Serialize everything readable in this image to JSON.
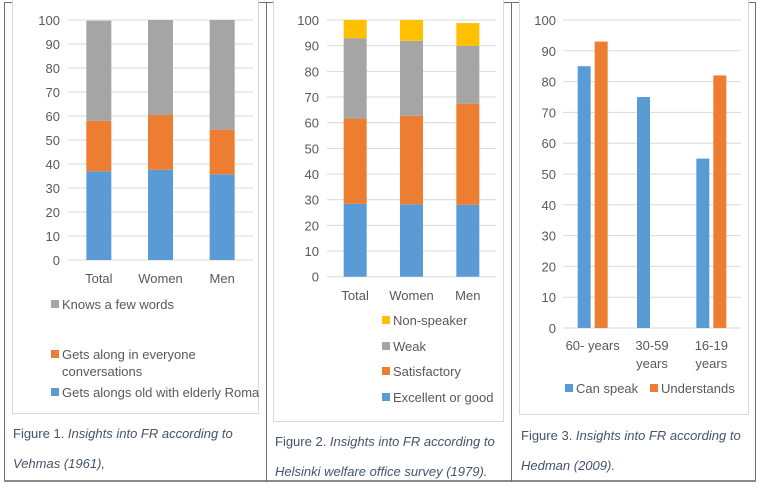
{
  "colors": {
    "blue": "#5b9bd5",
    "orange": "#ed7d31",
    "gray": "#a5a5a5",
    "yellow": "#ffc000",
    "grid": "#d9d9d9",
    "text": "#595959",
    "caption": "#44546a"
  },
  "chart_data": [
    {
      "type": "bar",
      "stacked": true,
      "categories": [
        "Total",
        "Women",
        "Men"
      ],
      "series": [
        {
          "name": "Gets alongs old with elderly Roma",
          "color": "#5b9bd5",
          "values": [
            37,
            37.6,
            35.7
          ]
        },
        {
          "name": "Gets along in everyone conversations",
          "color": "#ed7d31",
          "values": [
            21,
            22.8,
            18.6
          ]
        },
        {
          "name": "Knows a few words",
          "color": "#a5a5a5",
          "values": [
            41.7,
            39.6,
            45.7
          ]
        }
      ],
      "yticks": [
        "0",
        "10",
        "20",
        "30",
        "40",
        "50",
        "60",
        "70",
        "80",
        "90",
        "100"
      ],
      "ylim": [
        0,
        100
      ],
      "grid": true,
      "legend_position": "bottom",
      "legend": [
        {
          "label": "Knows a few words",
          "lines": [
            "Knows a few words"
          ],
          "color": "#a5a5a5"
        },
        {
          "label": "Gets along in everyone conversations",
          "lines": [
            "Gets along in everyone",
            "conversations"
          ],
          "color": "#ed7d31"
        },
        {
          "label": "Gets alongs old with elderly Roma",
          "lines": [
            "Gets alongs old with elderly Roma"
          ],
          "color": "#5b9bd5"
        }
      ],
      "caption_prefix": "Figure 1. ",
      "caption_lines": [
        "Insights into FR according to",
        "Vehmas (1961),"
      ]
    },
    {
      "type": "bar",
      "stacked": true,
      "categories": [
        "Total",
        "Women",
        "Men"
      ],
      "series": [
        {
          "name": "Excellent or good",
          "color": "#5b9bd5",
          "values": [
            28.4,
            28.2,
            28.0
          ]
        },
        {
          "name": "Satisfactory",
          "color": "#ed7d31",
          "values": [
            33.2,
            34.5,
            39.4
          ]
        },
        {
          "name": "Weak",
          "color": "#a5a5a5",
          "values": [
            31.3,
            29.2,
            22.5
          ]
        },
        {
          "name": "Non-speaker",
          "color": "#ffc000",
          "values": [
            7.1,
            8.1,
            8.9
          ]
        }
      ],
      "yticks": [
        "0",
        "10",
        "20",
        "30",
        "40",
        "50",
        "60",
        "70",
        "80",
        "90",
        "100"
      ],
      "ylim": [
        0,
        100
      ],
      "grid": true,
      "legend_position": "bottom",
      "legend": [
        {
          "label": "Non-speaker",
          "lines": [
            "Non-speaker"
          ],
          "color": "#ffc000"
        },
        {
          "label": "Weak",
          "lines": [
            "Weak"
          ],
          "color": "#a5a5a5"
        },
        {
          "label": "Satisfactory",
          "lines": [
            "Satisfactory"
          ],
          "color": "#ed7d31"
        },
        {
          "label": "Excellent or good",
          "lines": [
            "Excellent or good"
          ],
          "color": "#5b9bd5"
        }
      ],
      "caption_prefix": "Figure 2. ",
      "caption_lines": [
        "Insights into FR according to",
        "Helsinki welfare office survey (1979)."
      ]
    },
    {
      "type": "bar",
      "stacked": false,
      "categories": [
        "60- years",
        "30-59 years",
        "16-19 years"
      ],
      "category_lines": [
        [
          "60- years"
        ],
        [
          "30-59",
          "years"
        ],
        [
          "16-19",
          "years"
        ]
      ],
      "series": [
        {
          "name": "Can speak",
          "color": "#5b9bd5",
          "values": [
            85,
            75,
            55
          ]
        },
        {
          "name": "Understands",
          "color": "#ed7d31",
          "values": [
            93,
            null,
            82
          ]
        }
      ],
      "yticks": [
        "0",
        "10",
        "20",
        "30",
        "40",
        "50",
        "60",
        "70",
        "80",
        "90",
        "100"
      ],
      "ylim": [
        0,
        100
      ],
      "grid": true,
      "legend_position": "bottom",
      "legend": [
        {
          "label": "Can speak",
          "lines": [
            "Can speak"
          ],
          "color": "#5b9bd5"
        },
        {
          "label": "Understands",
          "lines": [
            "Understands"
          ],
          "color": "#ed7d31"
        }
      ],
      "caption_prefix": "Figure 3. ",
      "caption_lines": [
        "Insights into FR according to",
        "Hedman (2009)."
      ]
    }
  ]
}
